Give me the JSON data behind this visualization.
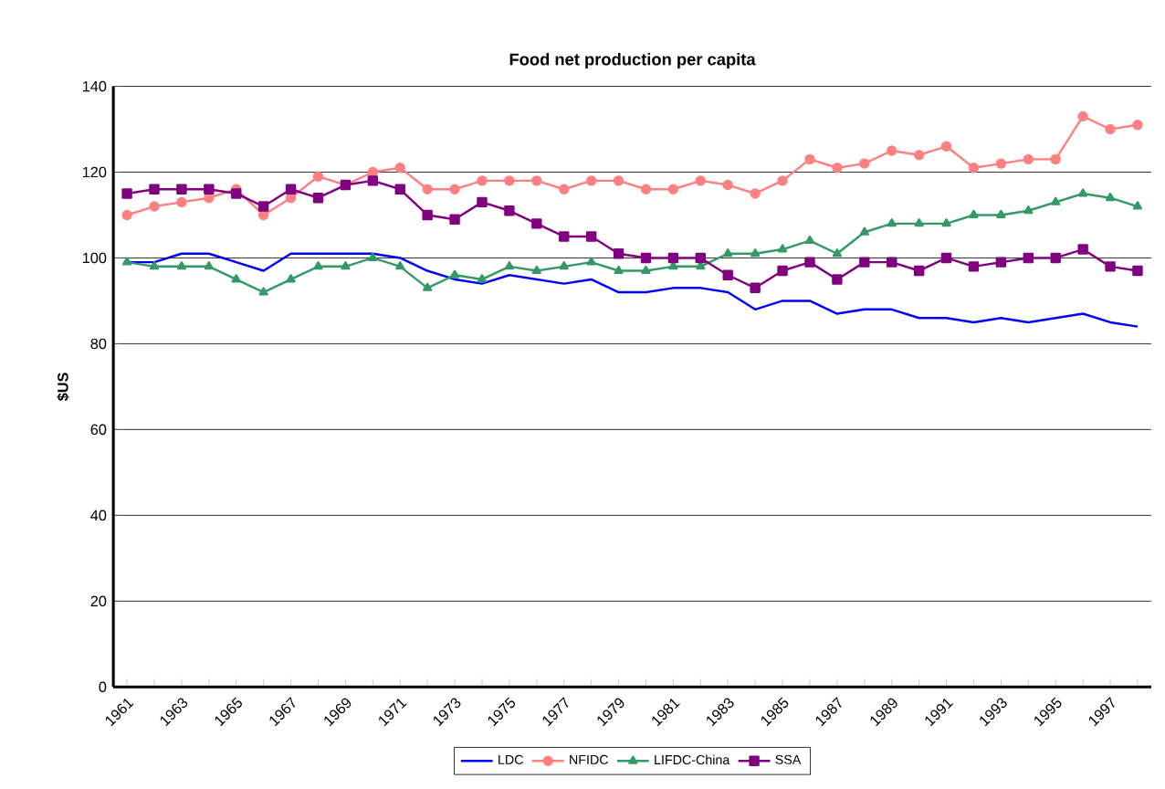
{
  "chart_data": {
    "type": "line",
    "title": "Food net production per capita",
    "ylabel": "$US",
    "categories": [
      "1961",
      null,
      "1963",
      null,
      "1965",
      null,
      "1967",
      null,
      "1969",
      null,
      "1971",
      null,
      "1973",
      null,
      "1975",
      null,
      "1977",
      null,
      "1979",
      null,
      "1981",
      null,
      "1983",
      null,
      "1985",
      null,
      "1987",
      null,
      "1989",
      null,
      "1991",
      null,
      "1993",
      null,
      "1995",
      null,
      "1997",
      null
    ],
    "ylim": [
      0,
      140
    ],
    "yticks": [
      0,
      20,
      40,
      60,
      80,
      100,
      120,
      140
    ],
    "grid": "y",
    "legend": "bottom",
    "series": [
      {
        "name": "LDC",
        "color": "#0000ff",
        "marker": "none",
        "values": [
          99,
          99,
          101,
          101,
          99,
          97,
          101,
          101,
          101,
          101,
          100,
          97,
          95,
          94,
          96,
          95,
          94,
          95,
          92,
          92,
          93,
          93,
          92,
          88,
          90,
          90,
          87,
          88,
          88,
          86,
          86,
          85,
          86,
          85,
          86,
          87,
          85,
          84
        ]
      },
      {
        "name": "NFIDC",
        "color": "#ff8080",
        "marker": "circle",
        "values": [
          110,
          112,
          113,
          114,
          116,
          110,
          114,
          119,
          117,
          120,
          121,
          116,
          116,
          118,
          118,
          118,
          116,
          118,
          118,
          116,
          116,
          118,
          117,
          115,
          118,
          123,
          121,
          122,
          125,
          124,
          126,
          121,
          122,
          123,
          123,
          133,
          130,
          131
        ]
      },
      {
        "name": "LIFDC-China",
        "color": "#339966",
        "marker": "triangle",
        "values": [
          99,
          98,
          98,
          98,
          95,
          92,
          95,
          98,
          98,
          100,
          98,
          93,
          96,
          95,
          98,
          97,
          98,
          99,
          97,
          97,
          98,
          98,
          101,
          101,
          102,
          104,
          101,
          106,
          108,
          108,
          108,
          110,
          110,
          111,
          113,
          115,
          114,
          112
        ]
      },
      {
        "name": "SSA",
        "color": "#800080",
        "marker": "square",
        "values": [
          115,
          116,
          116,
          116,
          115,
          112,
          116,
          114,
          117,
          118,
          116,
          110,
          109,
          113,
          111,
          108,
          105,
          105,
          101,
          100,
          100,
          100,
          96,
          93,
          97,
          99,
          95,
          99,
          99,
          97,
          100,
          98,
          99,
          100,
          100,
          102,
          98,
          97
        ]
      }
    ]
  }
}
